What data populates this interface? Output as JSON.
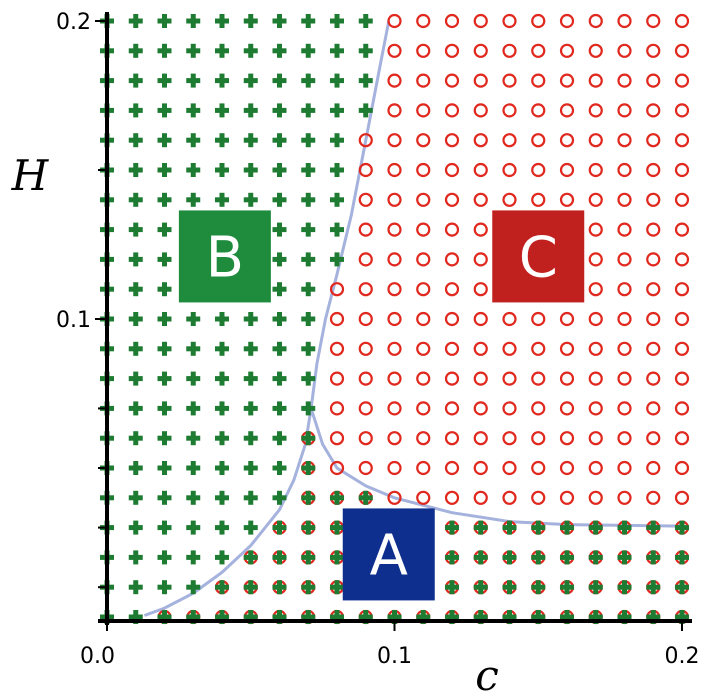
{
  "chart_data": {
    "type": "scatter",
    "title": "",
    "xlabel": "c",
    "ylabel": "H",
    "xlim": [
      0.0,
      0.2
    ],
    "ylim": [
      0.0,
      0.2
    ],
    "x_ticks": [
      {
        "value": 0.0,
        "label": "0.0"
      },
      {
        "value": 0.1,
        "label": "0.1"
      },
      {
        "value": 0.2,
        "label": "0.2"
      }
    ],
    "y_ticks": [
      {
        "value": 0.1,
        "label": "0.1"
      },
      {
        "value": 0.2,
        "label": "0.2"
      }
    ],
    "y_minor_ticks": [
      0.01,
      0.03,
      0.05,
      0.07,
      0.15
    ],
    "grid": false,
    "grid_sampling": {
      "c_start": 0.0,
      "c_step": 0.01,
      "c_count": 21,
      "H_start": 0.0,
      "H_step": 0.01,
      "H_count": 21
    },
    "series": [
      {
        "marker": "cross",
        "color": "#1e7b32"
      },
      {
        "marker": "circle",
        "color": "#e0281e"
      }
    ],
    "boundaries": [
      {
        "color": "#a4b2dd",
        "points": [
          [
            0.013,
            0.0005
          ],
          [
            0.02,
            0.003
          ],
          [
            0.03,
            0.008
          ],
          [
            0.04,
            0.015
          ],
          [
            0.05,
            0.024
          ],
          [
            0.06,
            0.036
          ],
          [
            0.065,
            0.046
          ],
          [
            0.069,
            0.058
          ],
          [
            0.071,
            0.07
          ]
        ]
      },
      {
        "color": "#a4b2dd",
        "points": [
          [
            0.071,
            0.07
          ],
          [
            0.073,
            0.085
          ],
          [
            0.076,
            0.1
          ],
          [
            0.08,
            0.115
          ],
          [
            0.085,
            0.135
          ],
          [
            0.09,
            0.16
          ],
          [
            0.095,
            0.185
          ],
          [
            0.098,
            0.2
          ]
        ]
      },
      {
        "color": "#a4b2dd",
        "points": [
          [
            0.071,
            0.07
          ],
          [
            0.075,
            0.058
          ],
          [
            0.08,
            0.05
          ],
          [
            0.09,
            0.044
          ],
          [
            0.1,
            0.04
          ],
          [
            0.12,
            0.035
          ],
          [
            0.14,
            0.032
          ],
          [
            0.16,
            0.031
          ],
          [
            0.2,
            0.0305
          ]
        ]
      }
    ],
    "region_labels": [
      {
        "text": "A",
        "color": "#0f2f8e",
        "c": 0.098,
        "H": 0.021
      },
      {
        "text": "B",
        "color": "#1e8c3c",
        "c": 0.041,
        "H": 0.121
      },
      {
        "text": "C",
        "color": "#c0201e",
        "c": 0.15,
        "H": 0.121
      }
    ]
  }
}
